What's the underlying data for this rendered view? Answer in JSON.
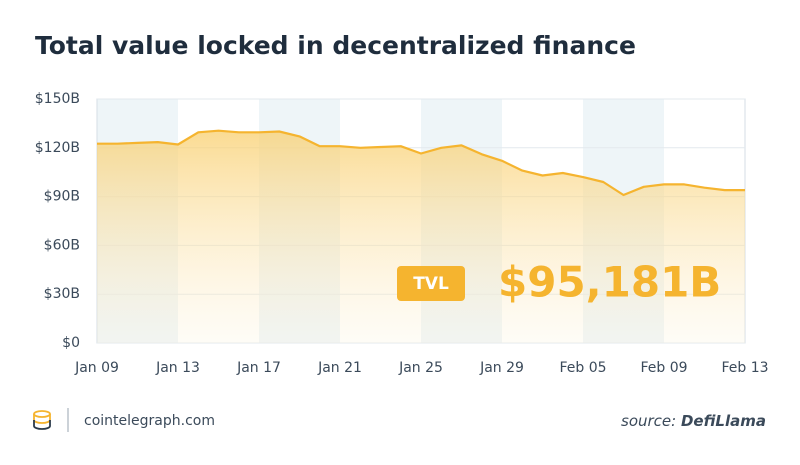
{
  "chart_data": {
    "type": "area",
    "title": "Total value locked in decentralized finance",
    "categories": [
      "Jan 09",
      null,
      null,
      null,
      "Jan 13",
      null,
      null,
      null,
      "Jan 17",
      null,
      null,
      null,
      "Jan 21",
      null,
      null,
      null,
      "Jan 25",
      null,
      null,
      null,
      "Jan 29",
      null,
      null,
      null,
      "Feb 05",
      null,
      null,
      null,
      "Feb 09",
      null,
      null,
      null,
      "Feb 13"
    ],
    "values": [
      122.5,
      122.5,
      123,
      123.5,
      122,
      129.5,
      130.5,
      129.5,
      129.5,
      130,
      127,
      121,
      121,
      120,
      120.5,
      121,
      116.5,
      120,
      121.5,
      116,
      112,
      106,
      103,
      104.5,
      102,
      99,
      91,
      96,
      97.5,
      97.5,
      95.5,
      94,
      94
    ],
    "color": "#f5b42f",
    "ylim": [
      0,
      150
    ],
    "yticks": [
      {
        "value": 0,
        "label": "$0"
      },
      {
        "value": 30,
        "label": "$30B"
      },
      {
        "value": 60,
        "label": "$60B"
      },
      {
        "value": 90,
        "label": "$90B"
      },
      {
        "value": 120,
        "label": "$120B"
      },
      {
        "value": 150,
        "label": "$150B"
      }
    ],
    "grid": true,
    "annotation": {
      "badge": "TVL",
      "text": "$95,181B"
    }
  },
  "footer": {
    "site": "cointelegraph.com",
    "source_label": "source:",
    "source_name": "DefiLlama"
  }
}
